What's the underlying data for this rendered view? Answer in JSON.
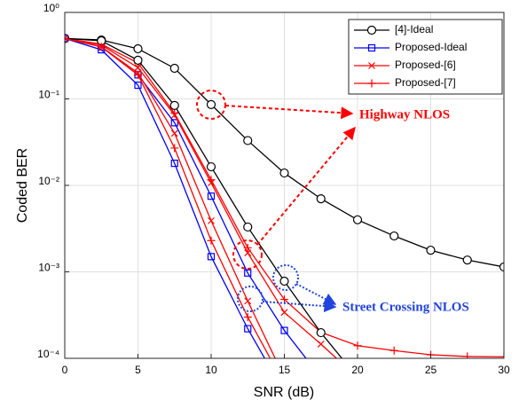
{
  "chart_data": {
    "type": "line",
    "x_label": "SNR (dB)",
    "y_label": "Coded BER",
    "x": [
      0,
      2.5,
      5,
      7.5,
      10,
      12.5,
      15,
      17.5,
      20,
      22.5,
      25,
      27.5,
      30
    ],
    "log_y": true,
    "grid": true,
    "legend": "upper right",
    "xlim": [
      0,
      30
    ],
    "xticks": [
      0,
      5,
      10,
      15,
      20,
      25,
      30
    ],
    "ylim": [
      0.0001,
      1
    ],
    "yticks": [
      {
        "value": 0.0001,
        "label": "10⁻⁴"
      },
      {
        "value": 0.001,
        "label": "10⁻³"
      },
      {
        "value": 0.01,
        "label": "10⁻²"
      },
      {
        "value": 0.1,
        "label": "10⁻¹"
      },
      {
        "value": 1,
        "label": "10⁰"
      }
    ],
    "series": [
      {
        "name": "[4]-Ideal",
        "color": "#000000",
        "marker": "o",
        "values": [
          0.5,
          0.48,
          0.38,
          0.226,
          0.086,
          0.033,
          0.0139,
          0.007,
          0.004,
          0.0026,
          0.00178,
          0.00137,
          0.00114
        ]
      },
      {
        "name": "Proposed-Ideal",
        "color": "#0000ff",
        "marker": "s",
        "values": [
          0.5,
          0.4,
          0.19,
          0.053,
          0.0075,
          0.00097,
          0.00021,
          6e-05,
          null,
          null,
          null,
          null,
          null
        ]
      },
      {
        "name": "Proposed-[6]",
        "color": "#ff0000",
        "marker": "x",
        "values": [
          0.5,
          0.42,
          0.23,
          0.065,
          0.0107,
          0.00166,
          0.00034,
          0.000146,
          6e-05,
          null,
          null,
          null,
          null
        ]
      },
      {
        "name": "Proposed-[7]",
        "color": "#ff0000",
        "marker": "+",
        "values": [
          0.5,
          0.43,
          0.26,
          0.068,
          0.0116,
          0.0019,
          0.00048,
          0.0002,
          0.00014,
          0.000123,
          0.00011,
          0.000105,
          0.000104
        ]
      },
      {
        "color": "#000000",
        "marker": "o",
        "values": [
          0.5,
          0.47,
          0.28,
          0.084,
          0.0164,
          0.0033,
          0.00078,
          0.000198,
          6e-05,
          null,
          null,
          null,
          null
        ]
      },
      {
        "color": "#0000ff",
        "marker": "s",
        "values": [
          0.5,
          0.37,
          0.144,
          0.018,
          0.0015,
          0.00022,
          4e-05,
          null,
          null,
          null,
          null,
          null,
          null
        ]
      },
      {
        "color": "#ff0000",
        "marker": "x",
        "values": [
          0.5,
          0.4,
          0.2,
          0.04,
          0.0039,
          0.00046,
          6e-05,
          null,
          null,
          null,
          null,
          null,
          null
        ]
      },
      {
        "color": "#ff0000",
        "marker": "+",
        "values": [
          0.5,
          0.4,
          0.19,
          0.027,
          0.0023,
          0.0003,
          5e-05,
          null,
          null,
          null,
          null,
          null,
          null
        ]
      }
    ],
    "annotations": [
      "Highway NLOS",
      "Street Crossing NLOS"
    ]
  }
}
